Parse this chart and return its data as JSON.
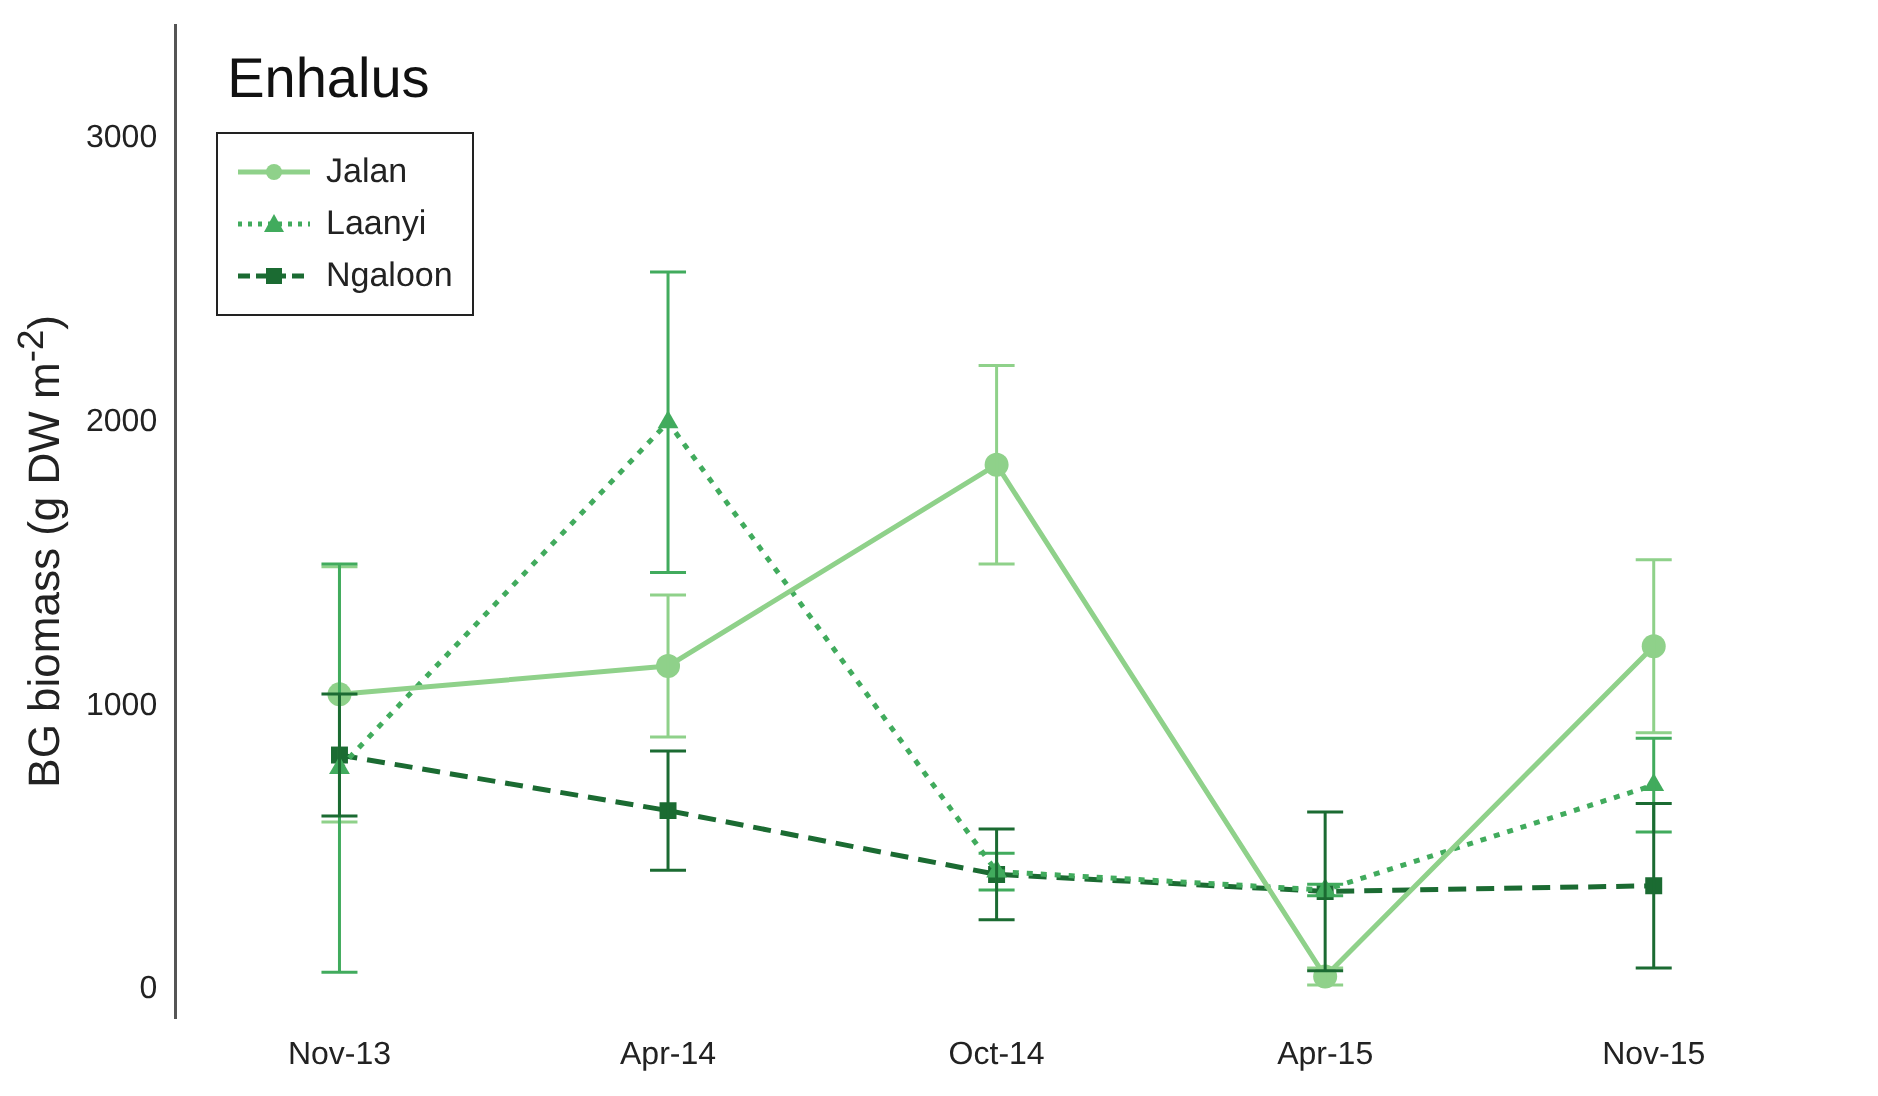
{
  "chart_data": {
    "type": "line",
    "title": "Enhalus",
    "ylabel": "BG biomass  (g DW m$^{-2}$)",
    "categories": [
      "Nov-13",
      "Apr-14",
      "Oct-14",
      "Apr-15",
      "Nov-15"
    ],
    "series": [
      {
        "name": "Jalan",
        "color": "#8fd18a",
        "marker": "circle",
        "line_style": "solid",
        "values": [
          1040,
          1140,
          1850,
          45,
          1210
        ],
        "errors": [
          450,
          250,
          350,
          30,
          305
        ]
      },
      {
        "name": "Laanyi",
        "color": "#41ab5d",
        "marker": "triangle",
        "line_style": "dotted",
        "values": [
          780,
          2000,
          415,
          350,
          720
        ],
        "errors": [
          720,
          530,
          65,
          20,
          165
        ]
      },
      {
        "name": "Ngaloon",
        "color": "#1b6b32",
        "marker": "square",
        "line_style": "dashed",
        "values": [
          826,
          630,
          405,
          345,
          365
        ],
        "errors": [
          215,
          210,
          160,
          280,
          290
        ]
      }
    ],
    "ylim": [
      -100,
      3400
    ],
    "yticks": [
      0,
      1000,
      2000,
      3000
    ],
    "grid": false,
    "legend": "top left"
  }
}
